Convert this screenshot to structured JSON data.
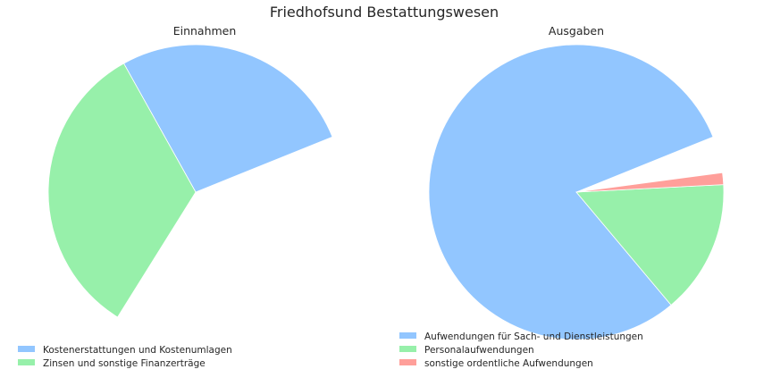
{
  "title": "Friedhofsund Bestattungswesen",
  "chart_data": [
    {
      "type": "pie",
      "title": "Einnahmen",
      "start_angle_deg": 22,
      "slices": [
        {
          "label": "Kostenerstattungen und Kostenumlagen",
          "value": 27.0,
          "color": "#92c6ff"
        },
        {
          "label": "Zinsen und sonstige Finanzerträge",
          "value": 33.0,
          "color": "#97f0aa"
        }
      ],
      "legend_position": "bottom-left"
    },
    {
      "type": "pie",
      "title": "Ausgaben",
      "start_angle_deg": 22,
      "slices": [
        {
          "label": "Aufwendungen für Sach- und Dienstleistungen",
          "value": 80.0,
          "color": "#92c6ff"
        },
        {
          "label": "Personalaufwendungen",
          "value": 14.7,
          "color": "#97f0aa"
        },
        {
          "label": "sonstige ordentliche Aufwendungen",
          "value": 1.3,
          "color": "#ff9f9a"
        }
      ],
      "legend_position": "bottom-center"
    }
  ]
}
